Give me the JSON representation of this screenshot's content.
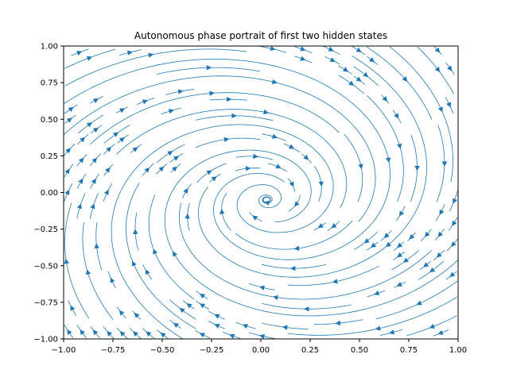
{
  "chart_data": {
    "type": "streamplot",
    "title": "Autonomous phase portrait of first two hidden states",
    "xlabel": "",
    "ylabel": "",
    "xlim": [
      -1.0,
      1.0
    ],
    "ylim": [
      -1.0,
      1.0
    ],
    "x_ticks": [
      "−1.00",
      "−0.75",
      "−0.50",
      "−0.25",
      "0.00",
      "0.25",
      "0.50",
      "0.75",
      "1.00"
    ],
    "y_ticks": [
      "−1.00",
      "−0.75",
      "−0.50",
      "−0.25",
      "0.00",
      "0.25",
      "0.50",
      "0.75",
      "1.00"
    ],
    "x_tick_values": [
      -1.0,
      -0.75,
      -0.5,
      -0.25,
      0.0,
      0.25,
      0.5,
      0.75,
      1.0
    ],
    "y_tick_values": [
      -1.0,
      -0.75,
      -0.5,
      -0.25,
      0.0,
      0.25,
      0.5,
      0.75,
      1.0
    ],
    "grid": false,
    "legend": "none",
    "line_color": "#1f77b4",
    "fixed_point": [
      0.03,
      -0.05
    ],
    "field": {
      "description_free": true,
      "type": "linear-spiral",
      "rotation": "clockwise",
      "decay": 0.28,
      "omega": 1.0
    }
  }
}
